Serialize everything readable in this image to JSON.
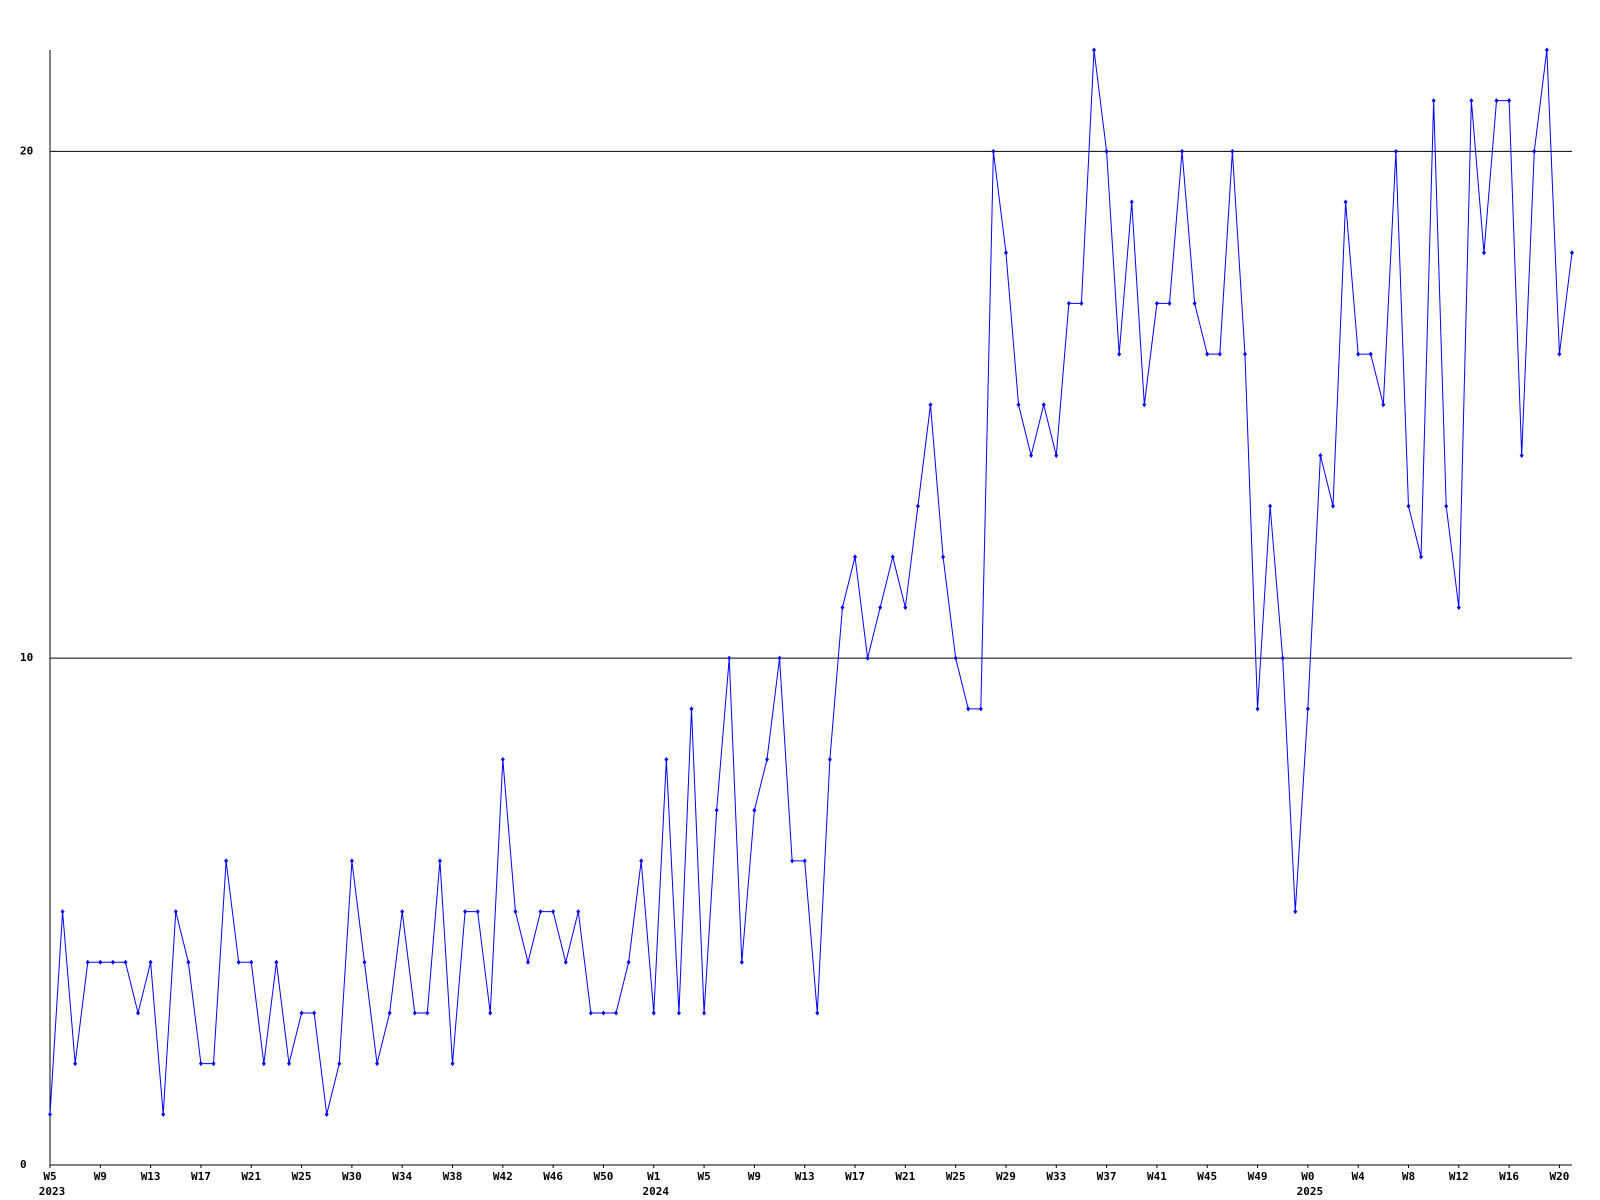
{
  "chart_data": {
    "type": "line",
    "grid": true,
    "categories": [
      "W5",
      null,
      null,
      null,
      "W9",
      null,
      null,
      null,
      "W13",
      null,
      null,
      null,
      "W17",
      null,
      null,
      null,
      "W21",
      null,
      null,
      null,
      "W25",
      null,
      null,
      null,
      "W30",
      null,
      null,
      null,
      "W34",
      null,
      null,
      null,
      "W38",
      null,
      null,
      null,
      "W42",
      null,
      null,
      null,
      "W46",
      null,
      null,
      null,
      "W50",
      null,
      null,
      null,
      "W1",
      null,
      null,
      null,
      "W5",
      null,
      null,
      null,
      "W9",
      null,
      null,
      null,
      "W13",
      null,
      null,
      null,
      "W17",
      null,
      null,
      null,
      "W21",
      null,
      null,
      null,
      "W25",
      null,
      null,
      null,
      "W29",
      null,
      null,
      null,
      "W33",
      null,
      null,
      null,
      "W37",
      null,
      null,
      null,
      "W41",
      null,
      null,
      null,
      "W45",
      null,
      null,
      null,
      "W49",
      null,
      null,
      null,
      "W0",
      null,
      null,
      null,
      "W4",
      null,
      null,
      null,
      "W8",
      null,
      null,
      null,
      "W12",
      null,
      null,
      null,
      "W16",
      null,
      null,
      null,
      "W20",
      null
    ],
    "category_years": [
      "2023",
      null,
      null,
      null,
      null,
      null,
      null,
      null,
      null,
      null,
      null,
      null,
      null,
      null,
      null,
      null,
      null,
      null,
      null,
      null,
      null,
      null,
      null,
      null,
      null,
      null,
      null,
      null,
      null,
      null,
      null,
      null,
      null,
      null,
      null,
      null,
      null,
      null,
      null,
      null,
      null,
      null,
      null,
      null,
      null,
      null,
      null,
      null,
      "2024",
      null,
      null,
      null,
      null,
      null,
      null,
      null,
      null,
      null,
      null,
      null,
      null,
      null,
      null,
      null,
      null,
      null,
      null,
      null,
      null,
      null,
      null,
      null,
      null,
      null,
      null,
      null,
      null,
      null,
      null,
      null,
      null,
      null,
      null,
      null,
      null,
      null,
      null,
      null,
      null,
      null,
      null,
      null,
      null,
      null,
      null,
      null,
      null,
      null,
      null,
      null,
      "2025",
      null,
      null,
      null,
      null,
      null,
      null,
      null,
      null,
      null,
      null,
      null,
      null,
      null,
      null,
      null,
      null,
      null,
      null,
      null,
      null,
      null
    ],
    "series": [
      {
        "color": "#0000ff",
        "values": [
          1,
          5,
          2,
          4,
          4,
          4,
          4,
          3,
          4,
          1,
          5,
          4,
          2,
          2,
          6,
          4,
          4,
          2,
          4,
          2,
          3,
          3,
          1,
          2,
          6,
          4,
          2,
          3,
          5,
          3,
          3,
          6,
          2,
          5,
          5,
          3,
          8,
          5,
          4,
          5,
          5,
          4,
          5,
          3,
          3,
          3,
          4,
          6,
          3,
          8,
          3,
          9,
          3,
          7,
          10,
          4,
          7,
          8,
          10,
          6,
          6,
          3,
          8,
          11,
          12,
          10,
          11,
          12,
          11,
          13,
          15,
          12,
          10,
          9,
          9,
          20,
          18,
          15,
          14,
          15,
          14,
          17,
          17,
          22,
          20,
          16,
          19,
          15,
          17,
          17,
          20,
          17,
          16,
          16,
          20,
          16,
          9,
          13,
          10,
          5,
          9,
          14,
          13,
          19,
          16,
          16,
          15,
          20,
          13,
          12,
          21,
          13,
          11,
          21,
          18,
          21,
          21,
          14,
          20,
          22,
          16,
          18
        ]
      }
    ],
    "ylim": [
      0,
      22
    ],
    "yticks": [
      0,
      10,
      20
    ]
  }
}
